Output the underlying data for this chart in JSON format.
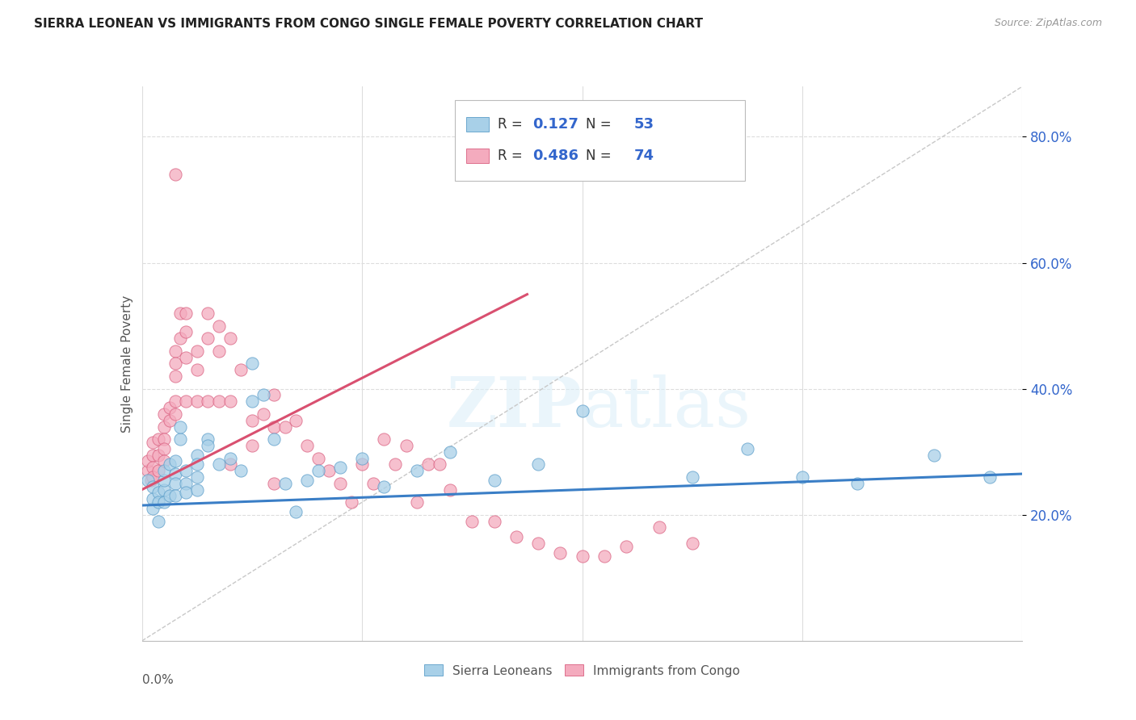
{
  "title": "SIERRA LEONEAN VS IMMIGRANTS FROM CONGO SINGLE FEMALE POVERTY CORRELATION CHART",
  "source": "Source: ZipAtlas.com",
  "ylabel": "Single Female Poverty",
  "y_ticks": [
    0.2,
    0.4,
    0.6,
    0.8
  ],
  "y_tick_labels": [
    "20.0%",
    "40.0%",
    "60.0%",
    "80.0%"
  ],
  "x_min": 0.0,
  "x_max": 0.08,
  "y_min": 0.0,
  "y_max": 0.88,
  "blue_label": "Sierra Leoneans",
  "pink_label": "Immigrants from Congo",
  "blue_R": "0.127",
  "blue_N": "53",
  "pink_R": "0.486",
  "pink_N": "74",
  "blue_color": "#A8D0E8",
  "pink_color": "#F4ABBE",
  "blue_edge_color": "#5B9DC9",
  "pink_edge_color": "#D96080",
  "blue_line_color": "#3A7EC6",
  "pink_line_color": "#D95070",
  "diag_color": "#C8C8C8",
  "background": "#FFFFFF",
  "grid_color": "#DDDDDD",
  "legend_text_color": "#3366CC",
  "title_color": "#222222",
  "source_color": "#999999",
  "ylabel_color": "#555555",
  "blue_x": [
    0.0005,
    0.001,
    0.001,
    0.001,
    0.0015,
    0.0015,
    0.0015,
    0.002,
    0.002,
    0.002,
    0.002,
    0.0025,
    0.0025,
    0.003,
    0.003,
    0.003,
    0.003,
    0.0035,
    0.0035,
    0.004,
    0.004,
    0.004,
    0.005,
    0.005,
    0.005,
    0.005,
    0.006,
    0.006,
    0.007,
    0.008,
    0.009,
    0.01,
    0.01,
    0.011,
    0.012,
    0.013,
    0.014,
    0.015,
    0.016,
    0.018,
    0.02,
    0.022,
    0.025,
    0.028,
    0.032,
    0.036,
    0.04,
    0.05,
    0.055,
    0.06,
    0.065,
    0.072,
    0.077
  ],
  "blue_y": [
    0.255,
    0.21,
    0.225,
    0.245,
    0.235,
    0.22,
    0.19,
    0.24,
    0.22,
    0.255,
    0.27,
    0.28,
    0.23,
    0.285,
    0.265,
    0.25,
    0.23,
    0.32,
    0.34,
    0.27,
    0.25,
    0.235,
    0.295,
    0.28,
    0.26,
    0.24,
    0.32,
    0.31,
    0.28,
    0.29,
    0.27,
    0.44,
    0.38,
    0.39,
    0.32,
    0.25,
    0.205,
    0.255,
    0.27,
    0.275,
    0.29,
    0.245,
    0.27,
    0.3,
    0.255,
    0.28,
    0.365,
    0.26,
    0.305,
    0.26,
    0.25,
    0.295,
    0.26
  ],
  "pink_x": [
    0.0005,
    0.0005,
    0.0008,
    0.001,
    0.001,
    0.001,
    0.001,
    0.0015,
    0.0015,
    0.0015,
    0.002,
    0.002,
    0.002,
    0.002,
    0.002,
    0.0025,
    0.0025,
    0.003,
    0.003,
    0.003,
    0.003,
    0.003,
    0.0035,
    0.0035,
    0.004,
    0.004,
    0.004,
    0.004,
    0.005,
    0.005,
    0.005,
    0.006,
    0.006,
    0.006,
    0.007,
    0.007,
    0.007,
    0.008,
    0.008,
    0.009,
    0.01,
    0.01,
    0.011,
    0.012,
    0.012,
    0.013,
    0.014,
    0.015,
    0.016,
    0.017,
    0.018,
    0.019,
    0.02,
    0.021,
    0.022,
    0.023,
    0.024,
    0.025,
    0.026,
    0.027,
    0.028,
    0.03,
    0.032,
    0.034,
    0.036,
    0.038,
    0.04,
    0.042,
    0.044,
    0.047,
    0.05,
    0.012,
    0.008,
    0.003
  ],
  "pink_y": [
    0.27,
    0.285,
    0.255,
    0.315,
    0.295,
    0.275,
    0.26,
    0.32,
    0.295,
    0.27,
    0.36,
    0.34,
    0.32,
    0.305,
    0.285,
    0.37,
    0.35,
    0.46,
    0.44,
    0.42,
    0.38,
    0.36,
    0.52,
    0.48,
    0.52,
    0.49,
    0.45,
    0.38,
    0.46,
    0.43,
    0.38,
    0.52,
    0.48,
    0.38,
    0.5,
    0.46,
    0.38,
    0.48,
    0.38,
    0.43,
    0.35,
    0.31,
    0.36,
    0.39,
    0.34,
    0.34,
    0.35,
    0.31,
    0.29,
    0.27,
    0.25,
    0.22,
    0.28,
    0.25,
    0.32,
    0.28,
    0.31,
    0.22,
    0.28,
    0.28,
    0.24,
    0.19,
    0.19,
    0.165,
    0.155,
    0.14,
    0.135,
    0.135,
    0.15,
    0.18,
    0.155,
    0.25,
    0.28,
    0.74
  ]
}
